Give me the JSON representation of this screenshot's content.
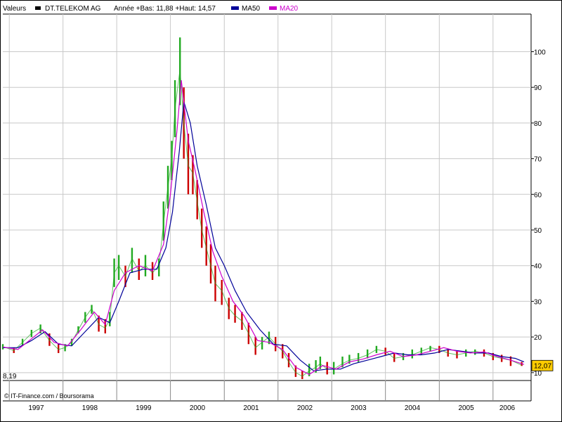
{
  "header": {
    "valeurs_label": "Valeurs",
    "security_label": "DT.TELEKOM AG",
    "range_label": "Année +Bas: 11,88 +Haut: 14,57",
    "ma50_label": "MA50",
    "ma20_label": "MA20"
  },
  "footer": {
    "credit": "© IT-Finance.com / Boursorama",
    "low_value_label": "8,19"
  },
  "colors": {
    "price_series": "#000000",
    "up_candle": "#22aa22",
    "down_candle": "#cc0000",
    "ma50": "#000099",
    "ma20": "#cc00cc",
    "last_price_badge": "#ffcc00",
    "grid": "#c8c8c8",
    "background": "#ffffff"
  },
  "chart_data": {
    "type": "line",
    "grid": true,
    "y_axis_position": "right",
    "ylim": [
      8.19,
      107
    ],
    "yticks": [
      10,
      20,
      30,
      40,
      50,
      60,
      70,
      80,
      90,
      100
    ],
    "ytick_labels": [
      "10",
      "20",
      "30",
      "40",
      "50",
      "60",
      "70",
      "80",
      "90",
      "100"
    ],
    "xlim": [
      "1996-11-18",
      "2006-07-31"
    ],
    "x_tick_labels": [
      "1997",
      "1998",
      "1999",
      "2000",
      "2001",
      "2002",
      "2003",
      "2004",
      "2005",
      "2006"
    ],
    "last_value": 12.07,
    "last_value_label": "12,07",
    "series": [
      {
        "name": "DT.TELEKOM AG",
        "kind": "candlestick-high-low",
        "x": [
          "1996-11-18",
          "1997-02-01",
          "1997-04-01",
          "1997-06-01",
          "1997-08-01",
          "1997-10-01",
          "1997-12-01",
          "1998-01-15",
          "1998-03-01",
          "1998-04-15",
          "1998-06-01",
          "1998-07-15",
          "1998-09-01",
          "1998-10-15",
          "1998-11-15",
          "1998-12-15",
          "1999-01-15",
          "1999-03-01",
          "1999-04-15",
          "1999-06-01",
          "1999-07-15",
          "1999-09-01",
          "1999-10-15",
          "1999-11-15",
          "1999-12-15",
          "2000-01-10",
          "2000-02-01",
          "2000-03-06",
          "2000-04-01",
          "2000-05-01",
          "2000-06-01",
          "2000-07-01",
          "2000-08-01",
          "2000-09-01",
          "2000-10-01",
          "2000-11-01",
          "2000-12-15",
          "2001-02-01",
          "2001-03-15",
          "2001-05-01",
          "2001-06-15",
          "2001-08-01",
          "2001-09-15",
          "2001-11-01",
          "2001-12-15",
          "2002-02-01",
          "2002-03-15",
          "2002-05-01",
          "2002-06-15",
          "2002-08-01",
          "2002-09-15",
          "2002-10-15",
          "2002-12-01",
          "2003-01-15",
          "2003-03-15",
          "2003-05-01",
          "2003-07-01",
          "2003-09-01",
          "2003-11-01",
          "2004-01-01",
          "2004-03-01",
          "2004-05-01",
          "2004-07-01",
          "2004-09-01",
          "2004-11-01",
          "2005-01-01",
          "2005-03-01",
          "2005-05-01",
          "2005-07-01",
          "2005-09-01",
          "2005-11-01",
          "2006-01-01",
          "2006-03-01",
          "2006-05-01",
          "2006-07-15"
        ],
        "values": [
          17.3,
          16.2,
          18.5,
          21.0,
          22.5,
          19.0,
          16.5,
          17.0,
          18.5,
          22.0,
          25.5,
          28.0,
          23.5,
          22.5,
          25.0,
          38.0,
          40.0,
          37.0,
          42.0,
          38.5,
          40.0,
          38.0,
          40.0,
          52.0,
          62.0,
          70.0,
          84.0,
          95.0,
          80.0,
          68.0,
          66.0,
          58.0,
          50.0,
          45.0,
          40.0,
          35.0,
          33.0,
          28.0,
          26.0,
          24.5,
          21.0,
          17.0,
          18.5,
          20.0,
          18.0,
          16.0,
          13.0,
          10.0,
          9.0,
          10.5,
          11.5,
          12.5,
          11.0,
          11.0,
          12.5,
          13.5,
          14.0,
          15.0,
          16.5,
          16.0,
          14.0,
          14.5,
          15.0,
          16.0,
          17.0,
          16.5,
          15.5,
          15.0,
          15.5,
          16.0,
          15.5,
          14.5,
          14.0,
          13.5,
          12.07
        ],
        "highs": [
          18.0,
          17.0,
          19.5,
          22.0,
          23.5,
          21.0,
          18.0,
          18.0,
          19.5,
          23.0,
          27.0,
          29.0,
          26.0,
          25.0,
          27.0,
          42.0,
          43.0,
          40.0,
          45.0,
          42.0,
          43.0,
          41.0,
          42.0,
          58.0,
          68.0,
          75.0,
          92.0,
          104.0,
          90.0,
          77.0,
          71.0,
          64.0,
          56.0,
          51.0,
          46.0,
          40.0,
          36.0,
          31.0,
          29.0,
          27.0,
          24.0,
          20.0,
          20.0,
          21.5,
          20.0,
          18.0,
          15.5,
          12.0,
          10.5,
          12.5,
          13.5,
          14.5,
          13.0,
          13.0,
          14.5,
          15.0,
          15.5,
          16.5,
          17.5,
          17.0,
          15.5,
          15.5,
          16.5,
          17.0,
          17.5,
          17.5,
          16.5,
          16.0,
          16.5,
          16.5,
          16.5,
          15.5,
          15.0,
          14.57,
          13.0
        ],
        "lows": [
          16.5,
          15.5,
          17.5,
          20.0,
          21.0,
          17.5,
          15.5,
          16.0,
          17.5,
          21.0,
          24.0,
          26.5,
          21.5,
          21.0,
          23.0,
          34.0,
          36.0,
          34.0,
          38.0,
          36.0,
          37.0,
          36.0,
          37.0,
          47.0,
          56.0,
          64.0,
          76.0,
          85.0,
          70.0,
          60.0,
          60.0,
          53.0,
          45.0,
          40.0,
          35.0,
          30.0,
          29.0,
          25.0,
          24.0,
          22.0,
          18.0,
          15.0,
          16.5,
          18.0,
          16.0,
          14.0,
          11.5,
          8.8,
          8.19,
          9.0,
          10.0,
          11.0,
          9.5,
          9.5,
          11.5,
          12.5,
          13.0,
          14.0,
          15.5,
          15.0,
          13.0,
          13.5,
          14.0,
          15.0,
          16.0,
          15.5,
          14.5,
          14.0,
          14.5,
          15.0,
          14.5,
          13.5,
          13.0,
          11.88,
          11.88
        ]
      },
      {
        "name": "MA50",
        "x": [
          "1996-11-18",
          "1997-03-01",
          "1997-06-01",
          "1997-09-01",
          "1997-12-01",
          "1998-03-01",
          "1998-06-01",
          "1998-09-01",
          "1998-11-15",
          "1999-01-15",
          "1999-04-01",
          "1999-07-01",
          "1999-10-01",
          "1999-12-01",
          "2000-01-15",
          "2000-03-01",
          "2000-04-01",
          "2000-05-15",
          "2000-07-01",
          "2000-09-01",
          "2000-11-01",
          "2001-01-01",
          "2001-03-15",
          "2001-06-01",
          "2001-09-01",
          "2001-12-01",
          "2002-03-01",
          "2002-06-01",
          "2002-09-01",
          "2002-12-01",
          "2003-03-01",
          "2003-06-01",
          "2003-09-01",
          "2003-12-01",
          "2004-03-01",
          "2004-06-01",
          "2004-09-01",
          "2004-12-01",
          "2005-03-01",
          "2005-06-01",
          "2005-09-01",
          "2005-12-01",
          "2006-03-01",
          "2006-06-01",
          "2006-07-31"
        ],
        "values": [
          17.0,
          17.0,
          19.0,
          21.5,
          18.0,
          17.5,
          21.5,
          25.5,
          24.0,
          30.0,
          38.0,
          39.0,
          39.0,
          45.0,
          55.0,
          72.0,
          86.0,
          80.0,
          68.0,
          57.0,
          45.0,
          40.0,
          33.0,
          27.0,
          22.0,
          18.0,
          17.5,
          13.5,
          10.5,
          11.0,
          11.0,
          12.5,
          13.5,
          14.5,
          15.5,
          15.0,
          15.0,
          15.5,
          16.5,
          16.0,
          15.5,
          15.5,
          14.5,
          14.0,
          13.0
        ]
      },
      {
        "name": "MA20",
        "x": [
          "1996-11-18",
          "1997-03-01",
          "1997-06-01",
          "1997-08-15",
          "1997-11-01",
          "1998-02-01",
          "1998-05-01",
          "1998-08-01",
          "1998-10-15",
          "1998-12-15",
          "1999-03-01",
          "1999-06-01",
          "1999-09-01",
          "1999-11-15",
          "2000-01-01",
          "2000-02-15",
          "2000-03-15",
          "2000-05-01",
          "2000-06-15",
          "2000-08-15",
          "2000-10-15",
          "2000-12-15",
          "2001-03-01",
          "2001-05-15",
          "2001-08-15",
          "2001-11-01",
          "2002-02-01",
          "2002-05-01",
          "2002-08-01",
          "2002-11-01",
          "2003-02-01",
          "2003-05-01",
          "2003-08-01",
          "2003-11-01",
          "2004-02-01",
          "2004-05-01",
          "2004-08-01",
          "2004-11-01",
          "2005-02-01",
          "2005-05-01",
          "2005-08-01",
          "2005-11-01",
          "2006-02-01",
          "2006-05-01",
          "2006-07-31"
        ],
        "values": [
          17.2,
          16.5,
          19.5,
          22.0,
          18.5,
          17.5,
          22.0,
          27.0,
          23.5,
          33.0,
          38.0,
          40.0,
          38.5,
          46.0,
          60.0,
          78.0,
          92.0,
          75.0,
          67.0,
          55.0,
          44.0,
          37.0,
          30.0,
          26.0,
          19.0,
          18.5,
          16.5,
          11.5,
          9.5,
          12.0,
          11.0,
          13.0,
          13.8,
          15.0,
          16.0,
          14.5,
          15.0,
          16.0,
          17.0,
          16.0,
          15.5,
          15.8,
          14.5,
          13.5,
          12.3
        ]
      }
    ]
  }
}
